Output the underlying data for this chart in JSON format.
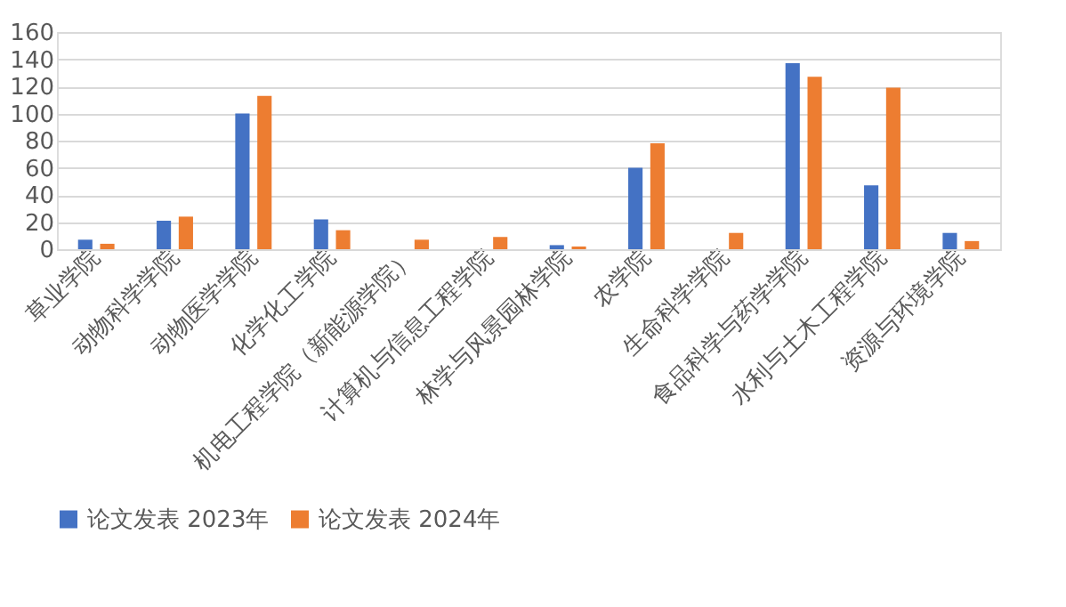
{
  "chart_data": {
    "type": "bar",
    "categories": [
      "草业学院",
      "动物科学学院",
      "动物医学学院",
      "化学化工学院",
      "机电工程学院（新能源学院）",
      "计算机与信息工程学院",
      "林学与风景园林学院",
      "农学院",
      "生命科学学院",
      "食品科学与药学学院",
      "水利与土木工程学院",
      "资源与环境学院"
    ],
    "series": [
      {
        "name": "论文发表 2023年",
        "color": "#4472c4",
        "values": [
          7,
          21,
          100,
          22,
          null,
          null,
          3,
          60,
          null,
          137,
          47,
          12
        ]
      },
      {
        "name": "论文发表 2024年",
        "color": "#ed7d31",
        "values": [
          4,
          24,
          113,
          14,
          7,
          9,
          2,
          78,
          12,
          127,
          119,
          6
        ]
      }
    ],
    "ylim": [
      0,
      160
    ],
    "yticks": [
      0,
      20,
      40,
      60,
      80,
      100,
      120,
      140,
      160
    ],
    "grid": "y",
    "legend": "bottom"
  }
}
